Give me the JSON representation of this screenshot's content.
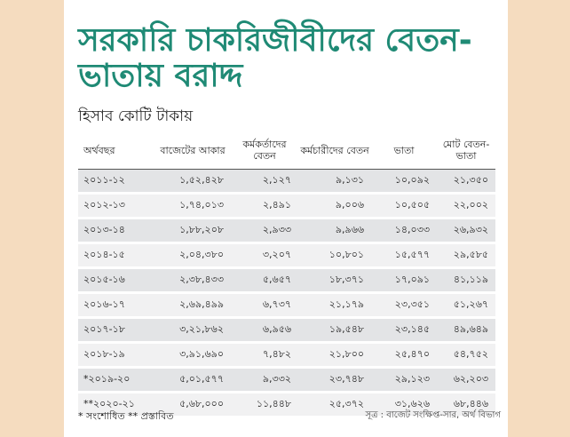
{
  "title": "সরকারি চাকরিজীবীদের বেতন-ভাতায় বরাদ্দ",
  "subtitle": "হিসাব কোটি টাকায়",
  "columns": [
    "অর্থবছর",
    "বাজেটের আকার",
    "কর্মকর্তাদের বেতন",
    "কর্মচারীদের বেতন",
    "ভাতা",
    "মোট বেতন-ভাতা"
  ],
  "rows": [
    [
      "২০১১-১২",
      "১,৫২,৪২৮",
      "২,১২৭",
      "৯,১৩১",
      "১০,০৯২",
      "২১,৩৫০"
    ],
    [
      "২০১২-১৩",
      "১,৭৪,০১৩",
      "২,৪৯১",
      "৯,০০৬",
      "১০,৫০৫",
      "২২,০০২"
    ],
    [
      "২০১৩-১৪",
      "১,৮৮,২০৮",
      "২,৯৩৩",
      "৯,৯৬৬",
      "১৪,০৩৩",
      "২৬,৯৩২"
    ],
    [
      "২০১৪-১৫",
      "২,০৪,৩৮০",
      "৩,২০৭",
      "১০,৮০১",
      "১৫,৫৭৭",
      "২৯,৫৮৫"
    ],
    [
      "২০১৫-১৬",
      "২,৩৮,৪৩৩",
      "৫,৬৫৭",
      "১৮,৩৭১",
      "১৭,০৯১",
      "৪১,১১৯"
    ],
    [
      "২০১৬-১৭",
      "২,৬৯,৪৯৯",
      "৬,৭৩৭",
      "২১,১৭৯",
      "২৩,৩৫১",
      "৫১,২৬৭"
    ],
    [
      "২০১৭-১৮",
      "৩,২১,৮৬২",
      "৬,৯৫৬",
      "১৯,৫৪৮",
      "২৩,১৪৫",
      "৪৯,৬৪৯"
    ],
    [
      "২০১৮-১৯",
      "৩,৯১,৬৯০",
      "৭,৪৮২",
      "২১,৮০০",
      "২৫,৪৭০",
      "৫৪,৭৫২"
    ],
    [
      "*২০১৯-২০",
      "৫,০১,৫৭৭",
      "৯,৩৩২",
      "২৩,৭৪৮",
      "২৯,১২৩",
      "৬২,২০৩"
    ],
    [
      "**২০২০-২১",
      "৫,৬৮,০০০",
      "১১,৪৪৮",
      "২৫,৩৭২",
      "৩১,৬২৬",
      "৬৮,৪৪৬"
    ]
  ],
  "footnote": "* সংশোধিত  ** প্রস্তাবিত",
  "source": "সূত্র : বাজেট সংক্ষিপ্ত-সার, অর্থ বিভাগ"
}
